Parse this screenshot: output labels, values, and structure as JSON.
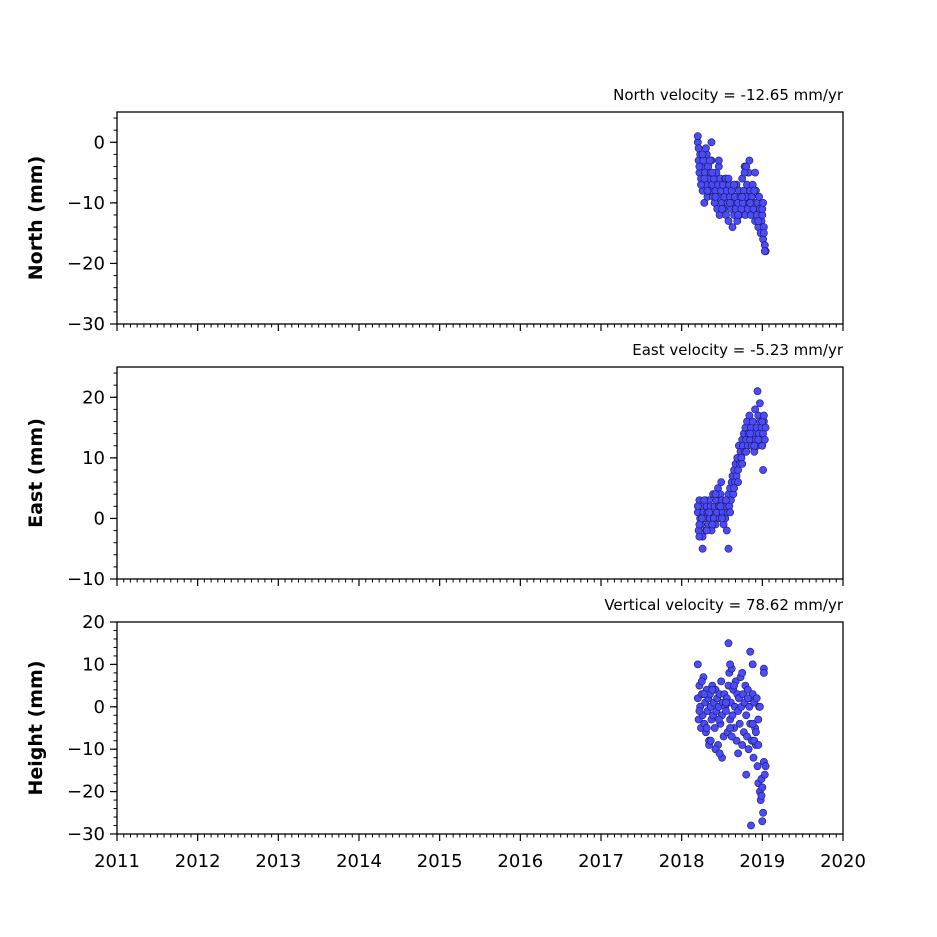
{
  "chart_data": [
    {
      "type": "scatter",
      "id": "north",
      "title": "North velocity = -12.65 mm/yr",
      "ylabel": "North (mm)",
      "xlabel": "",
      "xlim": [
        2011,
        2020
      ],
      "ylim": [
        -30,
        5
      ],
      "yticks": [
        0,
        -10,
        -20,
        -30
      ],
      "ytick_labels": [
        "0",
        "−10",
        "−20",
        "−30"
      ],
      "show_xtick_labels": false,
      "color": "#4a4aff",
      "series": [
        {
          "x": [
            2018.2,
            2018.21,
            2018.22,
            2018.23,
            2018.24,
            2018.25,
            2018.26,
            2018.27,
            2018.28,
            2018.29,
            2018.3,
            2018.31,
            2018.32,
            2018.33,
            2018.34,
            2018.35,
            2018.36,
            2018.37,
            2018.38,
            2018.39,
            2018.4,
            2018.41,
            2018.42,
            2018.43,
            2018.44,
            2018.45,
            2018.46,
            2018.47,
            2018.48,
            2018.49,
            2018.5,
            2018.51,
            2018.52,
            2018.53,
            2018.54,
            2018.55,
            2018.56,
            2018.57,
            2018.58,
            2018.59,
            2018.6,
            2018.61,
            2018.62,
            2018.63,
            2018.64,
            2018.65,
            2018.66,
            2018.67,
            2018.68,
            2018.69,
            2018.7,
            2018.71,
            2018.72,
            2018.73,
            2018.74,
            2018.75,
            2018.76,
            2018.77,
            2018.78,
            2018.79,
            2018.8,
            2018.81,
            2018.82,
            2018.83,
            2018.84,
            2018.85,
            2018.86,
            2018.87,
            2018.88,
            2018.89,
            2018.9,
            2018.91,
            2018.92,
            2018.93,
            2018.94,
            2018.95,
            2018.96,
            2018.97,
            2018.98,
            2018.99,
            2019.0,
            2019.01,
            2019.02,
            2019.03,
            2019.04,
            2018.2,
            2018.21,
            2018.22,
            2018.24,
            2018.26,
            2018.28,
            2018.3,
            2018.32,
            2018.35,
            2018.38,
            2018.42,
            2018.46,
            2018.5,
            2018.55,
            2018.6,
            2018.65,
            2018.7,
            2018.75,
            2018.8,
            2018.85,
            2018.9,
            2018.95,
            2019.0,
            2019.02,
            2018.37,
            2018.46,
            2018.58,
            2018.78,
            2018.84,
            2018.91,
            2019.01,
            2019.03
          ],
          "y": [
            0,
            -3,
            -5,
            -2,
            -6,
            -4,
            -8,
            -3,
            -10,
            -5,
            -7,
            -2,
            -9,
            -4,
            -6,
            -8,
            -5,
            -3,
            -7,
            -9,
            -6,
            -10,
            -8,
            -5,
            -11,
            -7,
            -9,
            -12,
            -6,
            -8,
            -10,
            -7,
            -11,
            -9,
            -6,
            -12,
            -8,
            -10,
            -13,
            -7,
            -9,
            -11,
            -8,
            -14,
            -10,
            -12,
            -9,
            -11,
            -7,
            -13,
            -10,
            -8,
            -12,
            -9,
            -11,
            -6,
            -10,
            -8,
            -4,
            -12,
            -9,
            -7,
            -11,
            -5,
            -10,
            -8,
            -12,
            -9,
            -7,
            -11,
            -10,
            -13,
            -8,
            -12,
            -10,
            -14,
            -9,
            -11,
            -15,
            -13,
            -12,
            -16,
            -14,
            -17,
            -18,
            1,
            -1,
            -4,
            -7,
            -2,
            -6,
            -1,
            -8,
            -3,
            -5,
            -9,
            -4,
            -11,
            -6,
            -10,
            -7,
            -12,
            -9,
            -4,
            -10,
            -8,
            -13,
            -11,
            -15,
            0,
            -3,
            -6,
            -5,
            -3,
            -5,
            -10,
            -18
          ]
        }
      ]
    },
    {
      "type": "scatter",
      "id": "east",
      "title": "East velocity = -5.23 mm/yr",
      "ylabel": "East (mm)",
      "xlabel": "",
      "xlim": [
        2011,
        2020
      ],
      "ylim": [
        -10,
        25
      ],
      "yticks": [
        20,
        10,
        0,
        -10
      ],
      "ytick_labels": [
        "20",
        "10",
        "0",
        "−10"
      ],
      "show_xtick_labels": false,
      "color": "#4a4aff",
      "series": [
        {
          "x": [
            2018.2,
            2018.21,
            2018.22,
            2018.23,
            2018.24,
            2018.25,
            2018.26,
            2018.27,
            2018.28,
            2018.29,
            2018.3,
            2018.31,
            2018.32,
            2018.33,
            2018.34,
            2018.35,
            2018.36,
            2018.37,
            2018.38,
            2018.39,
            2018.4,
            2018.41,
            2018.42,
            2018.43,
            2018.44,
            2018.45,
            2018.46,
            2018.47,
            2018.48,
            2018.49,
            2018.5,
            2018.51,
            2018.52,
            2018.53,
            2018.54,
            2018.55,
            2018.56,
            2018.57,
            2018.58,
            2018.59,
            2018.6,
            2018.61,
            2018.62,
            2018.63,
            2018.64,
            2018.65,
            2018.66,
            2018.67,
            2018.68,
            2018.69,
            2018.7,
            2018.71,
            2018.72,
            2018.73,
            2018.74,
            2018.75,
            2018.76,
            2018.77,
            2018.78,
            2018.79,
            2018.8,
            2018.81,
            2018.82,
            2018.83,
            2018.84,
            2018.85,
            2018.86,
            2018.87,
            2018.88,
            2018.89,
            2018.9,
            2018.91,
            2018.92,
            2018.93,
            2018.94,
            2018.95,
            2018.96,
            2018.97,
            2018.98,
            2018.99,
            2019.0,
            2019.01,
            2019.02,
            2019.03,
            2019.04,
            2018.2,
            2018.22,
            2018.25,
            2018.28,
            2018.31,
            2018.34,
            2018.38,
            2018.42,
            2018.46,
            2018.5,
            2018.55,
            2018.6,
            2018.65,
            2018.7,
            2018.75,
            2018.8,
            2018.85,
            2018.9,
            2018.95,
            2019.0,
            2019.02,
            2018.22,
            2018.26,
            2018.48,
            2018.58,
            2018.94,
            2018.97,
            2019.01
          ],
          "y": [
            1,
            -2,
            3,
            0,
            -1,
            2,
            -3,
            1,
            0,
            3,
            -2,
            2,
            1,
            -1,
            3,
            0,
            2,
            -2,
            1,
            4,
            0,
            2,
            -1,
            3,
            1,
            5,
            2,
            0,
            4,
            6,
            3,
            1,
            -1,
            2,
            0,
            3,
            -2,
            1,
            4,
            2,
            5,
            3,
            6,
            7,
            4,
            8,
            6,
            9,
            7,
            10,
            8,
            12,
            9,
            11,
            10,
            13,
            12,
            14,
            11,
            15,
            13,
            16,
            12,
            14,
            17,
            13,
            15,
            12,
            16,
            14,
            11,
            18,
            13,
            15,
            12,
            17,
            14,
            16,
            13,
            15,
            12,
            14,
            16,
            13,
            15,
            2,
            -1,
            0,
            3,
            -2,
            1,
            -1,
            4,
            2,
            0,
            3,
            1,
            5,
            6,
            9,
            11,
            14,
            12,
            13,
            16,
            17,
            -3,
            -5,
            2,
            -5,
            21,
            19,
            8
          ]
        }
      ]
    },
    {
      "type": "scatter",
      "id": "height",
      "title": "Vertical velocity = 78.62 mm/yr",
      "ylabel": "Height (mm)",
      "xlabel": "",
      "xlim": [
        2011,
        2020
      ],
      "ylim": [
        -30,
        20
      ],
      "yticks": [
        20,
        10,
        0,
        -10,
        -20,
        -30
      ],
      "ytick_labels": [
        "20",
        "10",
        "0",
        "−10",
        "−20",
        "−30"
      ],
      "show_xtick_labels": true,
      "xticks": [
        2011,
        2012,
        2013,
        2014,
        2015,
        2016,
        2017,
        2018,
        2019,
        2020
      ],
      "xtick_labels": [
        "2011",
        "2012",
        "2013",
        "2014",
        "2015",
        "2016",
        "2017",
        "2018",
        "2019",
        "2020"
      ],
      "color": "#4a4aff",
      "series": [
        {
          "x": [
            2018.2,
            2018.21,
            2018.22,
            2018.23,
            2018.24,
            2018.25,
            2018.26,
            2018.27,
            2018.28,
            2018.29,
            2018.3,
            2018.31,
            2018.32,
            2018.33,
            2018.34,
            2018.35,
            2018.36,
            2018.37,
            2018.38,
            2018.39,
            2018.4,
            2018.41,
            2018.42,
            2018.43,
            2018.44,
            2018.45,
            2018.46,
            2018.47,
            2018.48,
            2018.49,
            2018.5,
            2018.51,
            2018.52,
            2018.53,
            2018.54,
            2018.55,
            2018.56,
            2018.57,
            2018.58,
            2018.59,
            2018.6,
            2018.61,
            2018.62,
            2018.63,
            2018.64,
            2018.65,
            2018.66,
            2018.67,
            2018.68,
            2018.69,
            2018.7,
            2018.71,
            2018.72,
            2018.73,
            2018.74,
            2018.75,
            2018.76,
            2018.77,
            2018.78,
            2018.79,
            2018.8,
            2018.81,
            2018.82,
            2018.83,
            2018.84,
            2018.85,
            2018.86,
            2018.87,
            2018.88,
            2018.89,
            2018.9,
            2018.91,
            2018.92,
            2018.93,
            2018.94,
            2018.95,
            2018.96,
            2018.97,
            2018.98,
            2018.99,
            2019.0,
            2019.01,
            2019.02,
            2019.03,
            2019.04,
            2018.2,
            2018.22,
            2018.25,
            2018.28,
            2018.31,
            2018.34,
            2018.38,
            2018.42,
            2018.46,
            2018.5,
            2018.55,
            2018.58,
            2018.6,
            2018.62,
            2018.65,
            2018.7,
            2018.75,
            2018.8,
            2018.85,
            2018.88,
            2018.9,
            2018.92,
            2018.95,
            2018.97,
            2018.99,
            2019.0,
            2019.02,
            2018.36,
            2018.47,
            2018.6,
            2018.82,
            2018.86,
            2018.88,
            2018.95,
            2019.02
          ],
          "y": [
            2,
            -3,
            5,
            0,
            -5,
            3,
            -2,
            7,
            -4,
            1,
            -6,
            4,
            -1,
            2,
            -8,
            3,
            0,
            -3,
            5,
            -2,
            1,
            -5,
            4,
            -1,
            2,
            -9,
            0,
            3,
            -4,
            6,
            -2,
            1,
            -7,
            3,
            0,
            -1,
            2,
            -6,
            5,
            8,
            -3,
            1,
            9,
            -2,
            4,
            -5,
            0,
            6,
            -8,
            3,
            -1,
            2,
            -4,
            7,
            0,
            -9,
            3,
            -6,
            1,
            5,
            -2,
            -7,
            4,
            -10,
            0,
            -4,
            2,
            -8,
            3,
            -12,
            1,
            -5,
            -9,
            2,
            -14,
            -18,
            0,
            -20,
            -22,
            -17,
            -19,
            -25,
            -13,
            -16,
            -14,
            10,
            -1,
            6,
            3,
            -5,
            -9,
            4,
            -10,
            -3,
            -12,
            1,
            15,
            10,
            -7,
            5,
            -11,
            8,
            -16,
            13,
            -4,
            -8,
            -6,
            -3,
            0,
            -21,
            -27,
            9,
            -8,
            -11,
            -5,
            2,
            -28,
            10,
            -9,
            8
          ]
        }
      ]
    }
  ]
}
